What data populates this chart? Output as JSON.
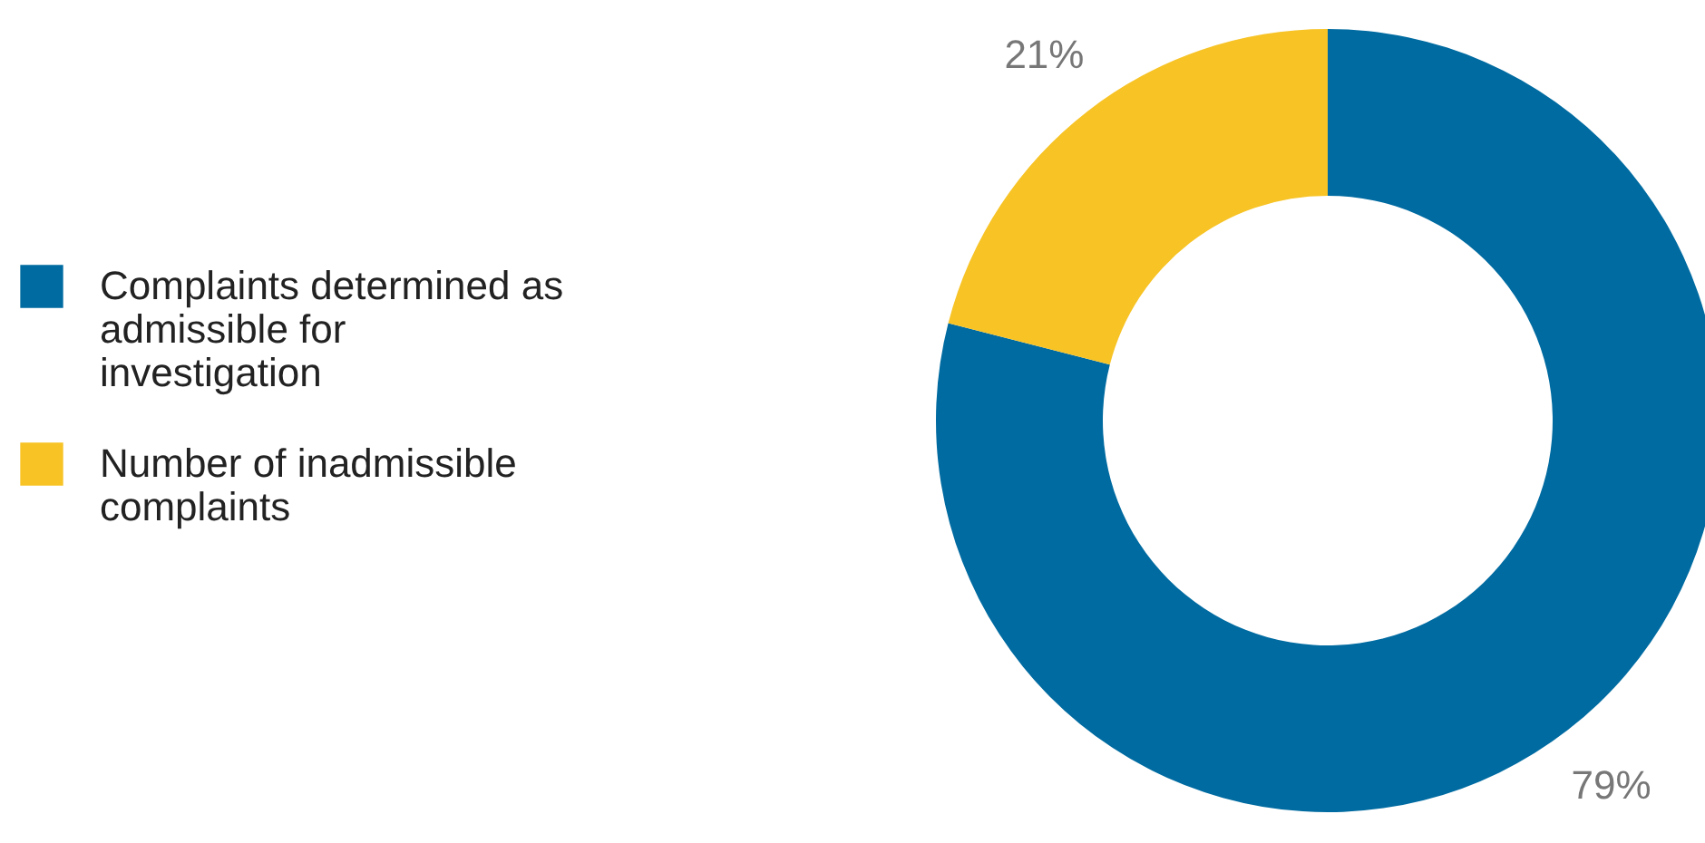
{
  "chart_data": {
    "type": "donut",
    "categories": [
      "Complaints determined as admissible for investigation",
      "Number of inadmissible complaints"
    ],
    "values": [
      79,
      21
    ],
    "colors": [
      "#006ba1",
      "#f7c325"
    ],
    "value_labels": [
      "79%",
      "21%"
    ],
    "legend": "left"
  }
}
